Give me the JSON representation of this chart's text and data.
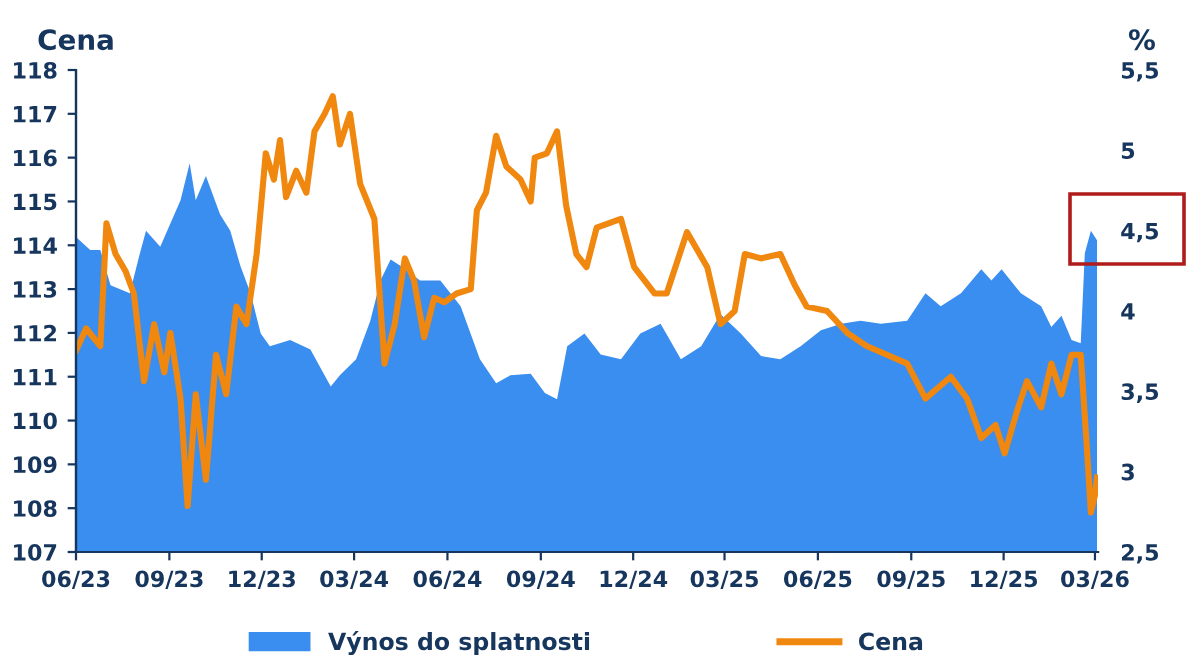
{
  "chart_data": {
    "type": "line",
    "ylabel": "Cena",
    "y2label": "%",
    "xlim": [
      "2023-06-01",
      "2026-03-04"
    ],
    "xticks": [
      {
        "value": "2023-06-01",
        "label": "06/23"
      },
      {
        "value": "2023-09-01",
        "label": "09/23"
      },
      {
        "value": "2023-12-01",
        "label": "12/23"
      },
      {
        "value": "2024-03-01",
        "label": "03/24"
      },
      {
        "value": "2024-06-01",
        "label": "06/24"
      },
      {
        "value": "2024-09-01",
        "label": "09/24"
      },
      {
        "value": "2024-12-01",
        "label": "12/24"
      },
      {
        "value": "2025-03-01",
        "label": "03/25"
      },
      {
        "value": "2025-06-01",
        "label": "06/25"
      },
      {
        "value": "2025-09-01",
        "label": "09/25"
      },
      {
        "value": "2025-12-01",
        "label": "12/25"
      },
      {
        "value": "2026-03-01",
        "label": "03/26"
      }
    ],
    "ylim": [
      107,
      118
    ],
    "yticks": [
      107,
      108,
      109,
      110,
      111,
      112,
      113,
      114,
      115,
      116,
      117,
      118
    ],
    "y2lim": [
      2.5,
      5.5
    ],
    "y2ticks": [
      {
        "value": 2.5,
        "label": "2,5"
      },
      3,
      {
        "value": 3.5,
        "label": "3,5"
      },
      4,
      {
        "value": 4.5,
        "label": "4,5"
      },
      5,
      {
        "value": 5.5,
        "label": "5,5"
      }
    ],
    "grid": false,
    "legend": "bottom",
    "series": [
      {
        "name": "Výnos do splatnosti",
        "type": "area",
        "axis": "y2",
        "color": "#3a8ef0",
        "x": [
          "2023-06-01",
          "2023-06-15",
          "2023-06-25",
          "2023-07-05",
          "2023-07-24",
          "2023-08-03",
          "2023-08-09",
          "2023-08-23",
          "2023-09-12",
          "2023-09-21",
          "2023-09-27",
          "2023-10-07",
          "2023-10-21",
          "2023-10-31",
          "2023-11-10",
          "2023-11-20",
          "2023-11-30",
          "2023-12-09",
          "2023-12-29",
          "2024-01-18",
          "2024-02-07",
          "2024-02-16",
          "2024-03-03",
          "2024-03-17",
          "2024-03-27",
          "2024-04-06",
          "2024-04-16",
          "2024-05-05",
          "2024-05-25",
          "2024-06-14",
          "2024-07-03",
          "2024-07-19",
          "2024-08-02",
          "2024-08-22",
          "2024-09-05",
          "2024-09-17",
          "2024-09-27",
          "2024-10-14",
          "2024-10-30",
          "2024-11-19",
          "2024-12-08",
          "2024-12-28",
          "2025-01-17",
          "2025-02-06",
          "2025-02-25",
          "2025-03-17",
          "2025-04-06",
          "2025-04-25",
          "2025-05-15",
          "2025-06-04",
          "2025-06-24",
          "2025-07-13",
          "2025-08-02",
          "2025-08-28",
          "2025-09-15",
          "2025-09-30",
          "2025-10-20",
          "2025-11-09",
          "2025-11-19",
          "2025-11-29",
          "2025-12-18",
          "2026-01-07",
          "2026-01-17",
          "2026-01-27",
          "2026-02-06",
          "2026-02-15",
          "2026-02-19",
          "2026-02-25",
          "2026-03-03"
        ],
        "values": [
          4.46,
          4.38,
          4.38,
          4.16,
          4.11,
          4.36,
          4.5,
          4.4,
          4.69,
          4.92,
          4.69,
          4.84,
          4.6,
          4.5,
          4.28,
          4.11,
          3.86,
          3.78,
          3.82,
          3.76,
          3.53,
          3.6,
          3.7,
          3.94,
          4.19,
          4.32,
          4.28,
          4.19,
          4.19,
          4.03,
          3.7,
          3.55,
          3.6,
          3.61,
          3.49,
          3.45,
          3.78,
          3.86,
          3.73,
          3.7,
          3.86,
          3.92,
          3.7,
          3.78,
          3.98,
          3.86,
          3.72,
          3.7,
          3.78,
          3.88,
          3.92,
          3.94,
          3.92,
          3.94,
          4.11,
          4.03,
          4.11,
          4.26,
          4.19,
          4.26,
          4.11,
          4.03,
          3.9,
          3.97,
          3.82,
          3.8,
          4.36,
          4.5,
          4.44
        ]
      },
      {
        "name": "Cena",
        "color": "#f0870f",
        "x": [
          "2023-06-01",
          "2023-06-11",
          "2023-06-25",
          "2023-07-01",
          "2023-07-10",
          "2023-07-20",
          "2023-07-28",
          "2023-08-07",
          "2023-08-17",
          "2023-08-27",
          "2023-09-02",
          "2023-09-12",
          "2023-09-19",
          "2023-09-27",
          "2023-10-07",
          "2023-10-17",
          "2023-10-27",
          "2023-11-06",
          "2023-11-16",
          "2023-11-26",
          "2023-12-05",
          "2023-12-13",
          "2023-12-19",
          "2023-12-25",
          "2024-01-04",
          "2024-01-14",
          "2024-01-22",
          "2024-02-01",
          "2024-02-09",
          "2024-02-16",
          "2024-02-26",
          "2024-03-07",
          "2024-03-21",
          "2024-03-31",
          "2024-04-10",
          "2024-04-20",
          "2024-04-29",
          "2024-05-09",
          "2024-05-19",
          "2024-05-29",
          "2024-06-10",
          "2024-06-24",
          "2024-06-30",
          "2024-07-09",
          "2024-07-19",
          "2024-07-29",
          "2024-08-12",
          "2024-08-22",
          "2024-08-26",
          "2024-09-07",
          "2024-09-17",
          "2024-09-26",
          "2024-10-06",
          "2024-10-16",
          "2024-10-26",
          "2024-11-19",
          "2024-12-02",
          "2024-12-22",
          "2025-01-03",
          "2025-01-23",
          "2025-02-12",
          "2025-02-25",
          "2025-03-11",
          "2025-03-21",
          "2025-04-06",
          "2025-04-25",
          "2025-05-09",
          "2025-05-21",
          "2025-06-10",
          "2025-06-30",
          "2025-07-19",
          "2025-08-08",
          "2025-08-28",
          "2025-09-15",
          "2025-09-30",
          "2025-10-10",
          "2025-10-26",
          "2025-11-09",
          "2025-11-23",
          "2025-12-02",
          "2025-12-14",
          "2025-12-24",
          "2026-01-07",
          "2026-01-17",
          "2026-01-27",
          "2026-02-06",
          "2026-02-15",
          "2026-02-21",
          "2026-02-25",
          "2026-03-01",
          "2026-03-03"
        ],
        "values": [
          111.6,
          112.1,
          111.7,
          114.5,
          113.8,
          113.4,
          112.9,
          110.9,
          112.2,
          111.1,
          112.0,
          110.5,
          108.05,
          110.6,
          108.65,
          111.5,
          110.6,
          112.6,
          112.2,
          113.8,
          116.1,
          115.5,
          116.4,
          115.1,
          115.7,
          115.2,
          116.6,
          117.0,
          117.4,
          116.3,
          117.0,
          115.4,
          114.6,
          111.3,
          112.2,
          113.7,
          113.2,
          111.9,
          112.8,
          112.7,
          112.9,
          113.0,
          114.8,
          115.2,
          116.5,
          115.8,
          115.5,
          115.0,
          116.0,
          116.1,
          116.6,
          114.9,
          113.8,
          113.5,
          114.4,
          114.6,
          113.5,
          112.9,
          112.9,
          114.3,
          113.5,
          112.2,
          112.5,
          113.8,
          113.7,
          113.8,
          113.1,
          112.6,
          112.5,
          112.0,
          111.7,
          111.5,
          111.3,
          110.5,
          110.8,
          111.0,
          110.5,
          109.6,
          109.9,
          109.25,
          110.2,
          110.9,
          110.3,
          111.3,
          110.6,
          111.5,
          111.5,
          109.4,
          107.9,
          108.3,
          108.7
        ]
      }
    ]
  }
}
